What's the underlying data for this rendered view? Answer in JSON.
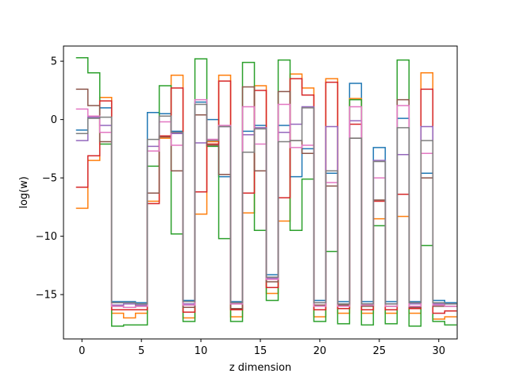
{
  "chart_data": {
    "type": "step",
    "xlabel": "z dimension",
    "ylabel": "log(w)",
    "xlim": [
      -1.55,
      31.55
    ],
    "ylim": [
      -18.8,
      6.3
    ],
    "xticks": [
      0,
      5,
      10,
      15,
      20,
      25,
      30
    ],
    "yticks": [
      -15,
      -10,
      -5,
      0,
      5
    ],
    "x": [
      0,
      1,
      2,
      3,
      4,
      5,
      6,
      7,
      8,
      9,
      10,
      11,
      12,
      13,
      14,
      15,
      16,
      17,
      18,
      19,
      20,
      21,
      22,
      23,
      24,
      25,
      26,
      27,
      28,
      29,
      30,
      31
    ],
    "series": [
      {
        "color": "#1f77b4",
        "values": [
          -0.9,
          0.3,
          1.0,
          -15.6,
          -15.6,
          -15.7,
          0.6,
          0.5,
          -1.0,
          -15.5,
          1.5,
          0.0,
          -4.9,
          -15.6,
          -1.0,
          -0.5,
          -13.3,
          -0.5,
          -4.9,
          -2.5,
          -15.5,
          -4.6,
          -15.6,
          3.1,
          -15.6,
          -2.4,
          -15.6,
          0.1,
          -15.6,
          -4.6,
          -15.5,
          -15.7
        ]
      },
      {
        "color": "#ff7f0e",
        "values": [
          -7.6,
          -3.5,
          1.9,
          -16.6,
          -17.0,
          -16.6,
          -7.0,
          -1.6,
          3.8,
          -17.0,
          -8.1,
          -1.9,
          3.8,
          -16.9,
          -8.0,
          2.9,
          -14.9,
          -8.7,
          3.9,
          2.7,
          -16.9,
          3.5,
          -16.6,
          1.8,
          -16.6,
          -8.5,
          -16.6,
          -8.3,
          -16.6,
          4.0,
          -17.1,
          -16.9
        ]
      },
      {
        "color": "#2ca02c",
        "values": [
          5.3,
          4.0,
          -2.1,
          -17.7,
          -17.6,
          -17.6,
          -4.0,
          2.9,
          -9.8,
          -17.3,
          5.2,
          -2.3,
          -10.2,
          -17.3,
          4.9,
          -9.5,
          -15.5,
          5.1,
          -9.5,
          -5.1,
          -17.3,
          -11.3,
          -17.5,
          1.7,
          -17.6,
          -9.1,
          -17.5,
          5.1,
          -17.7,
          -10.8,
          -17.3,
          -17.6
        ]
      },
      {
        "color": "#d62728",
        "values": [
          -5.8,
          -3.1,
          1.6,
          -16.3,
          -16.3,
          -16.3,
          -7.2,
          -1.4,
          2.7,
          -16.5,
          -6.2,
          -2.1,
          3.3,
          -16.3,
          -6.3,
          2.5,
          -14.4,
          -6.7,
          3.5,
          2.1,
          -16.3,
          3.2,
          -16.2,
          -0.4,
          -16.3,
          -7.0,
          -16.3,
          -6.4,
          -16.2,
          2.6,
          -16.6,
          -16.4
        ]
      },
      {
        "color": "#9467bd",
        "values": [
          -1.8,
          0.2,
          -0.5,
          -15.9,
          -15.8,
          -15.9,
          -2.3,
          0.3,
          -1.2,
          -15.8,
          -2.0,
          -1.7,
          -0.6,
          -15.8,
          -1.3,
          -0.7,
          -13.6,
          -1.1,
          -0.4,
          1.1,
          -15.7,
          -0.6,
          -15.9,
          -0.1,
          -15.8,
          -3.5,
          -15.8,
          -3.0,
          -15.8,
          -0.6,
          -15.8,
          -15.8
        ]
      },
      {
        "color": "#8c564b",
        "values": [
          2.6,
          1.2,
          -1.9,
          -16.0,
          -16.1,
          -16.0,
          -6.3,
          -1.5,
          -4.4,
          -16.1,
          0.4,
          -2.2,
          -4.7,
          -16.2,
          2.8,
          -4.4,
          -13.9,
          2.4,
          -1.8,
          -2.9,
          -15.9,
          -5.7,
          -15.9,
          -1.6,
          -16.0,
          -6.9,
          -16.0,
          1.7,
          -16.1,
          -5.0,
          -16.0,
          -16.0
        ]
      },
      {
        "color": "#e377c2",
        "values": [
          0.9,
          0.3,
          -1.1,
          -16.0,
          -16.1,
          -16.0,
          -2.7,
          -0.2,
          -2.2,
          -15.9,
          1.7,
          -1.7,
          -0.5,
          -15.8,
          1.1,
          -2.1,
          -13.7,
          1.3,
          -2.4,
          -2.2,
          -16.0,
          -5.4,
          -16.0,
          1.1,
          -15.9,
          -5.0,
          -16.0,
          1.2,
          -16.0,
          -2.9,
          -15.9,
          -16.0
        ]
      },
      {
        "color": "#7f7f7f",
        "values": [
          -1.2,
          0.1,
          0.2,
          -15.7,
          -15.7,
          -15.8,
          -1.7,
          0.3,
          -1.1,
          -15.6,
          1.3,
          -1.8,
          -0.6,
          -15.7,
          -2.8,
          -0.8,
          -13.5,
          -1.9,
          -1.8,
          1.0,
          -15.7,
          -4.4,
          -15.8,
          -1.6,
          -15.8,
          -3.6,
          -15.8,
          -0.7,
          -15.7,
          -1.8,
          -15.7,
          -15.8
        ]
      }
    ]
  }
}
